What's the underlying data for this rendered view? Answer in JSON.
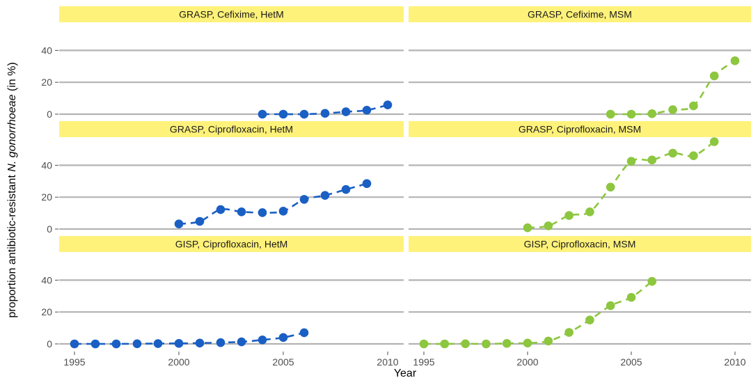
{
  "chart_data": {
    "type": "scatter",
    "ylabel_prefix": "proportion antibiotic-resistant ",
    "ylabel_italic": "N. gonorrhoeae",
    "ylabel_suffix": " (in %)",
    "xlabel": "Year",
    "xlim": [
      1995,
      2010
    ],
    "ylim": [
      0,
      45
    ],
    "x_ticks": [
      1995,
      2000,
      2005,
      2010
    ],
    "y_ticks": [
      0,
      20,
      40
    ],
    "grid": "horizontal",
    "colors": {
      "HetM": "#1a5fc4",
      "MSM": "#8dc63f",
      "strip_fill": "#fff27a",
      "grid": "#b3b3b3"
    },
    "panels": [
      {
        "title": "GRASP, Cefixime, HetM",
        "group": "HetM",
        "x": [
          2004,
          2005,
          2006,
          2007,
          2008,
          2009,
          2010
        ],
        "y": [
          0,
          0,
          0,
          0.5,
          1.5,
          2.5,
          5.8
        ]
      },
      {
        "title": "GRASP, Cefixime, MSM",
        "group": "MSM",
        "x": [
          2004,
          2005,
          2006,
          2007,
          2008,
          2009,
          2010
        ],
        "y": [
          0,
          0,
          0.3,
          2.8,
          5.2,
          24,
          33.5
        ]
      },
      {
        "title": "GRASP, Ciprofloxacin, HetM",
        "group": "HetM",
        "x": [
          2000,
          2001,
          2002,
          2003,
          2004,
          2005,
          2006,
          2007,
          2008,
          2009
        ],
        "y": [
          3.2,
          4.8,
          12.2,
          10.8,
          10.3,
          11.2,
          18.6,
          21.1,
          24.8,
          28.5
        ]
      },
      {
        "title": "GRASP, Ciprofloxacin, MSM",
        "group": "MSM",
        "x": [
          2000,
          2001,
          2002,
          2003,
          2004,
          2005,
          2006,
          2007,
          2008,
          2009
        ],
        "y": [
          0.8,
          2,
          8.5,
          10.8,
          26.3,
          42.5,
          43.3,
          47.6,
          46,
          54.8
        ]
      },
      {
        "title": "GISP, Ciprofloxacin, HetM",
        "group": "HetM",
        "x": [
          1995,
          1996,
          1997,
          1998,
          1999,
          2000,
          2001,
          2002,
          2003,
          2004,
          2005,
          2006
        ],
        "y": [
          0,
          0,
          0,
          0.1,
          0.2,
          0.3,
          0.5,
          0.8,
          1.3,
          2.5,
          4,
          7
        ]
      },
      {
        "title": "GISP, Ciprofloxacin, MSM",
        "group": "MSM",
        "x": [
          1995,
          1996,
          1997,
          1998,
          1999,
          2000,
          2001,
          2002,
          2003,
          2004,
          2005,
          2006
        ],
        "y": [
          0,
          0,
          0.1,
          0,
          0.3,
          0.5,
          1.8,
          7.2,
          15,
          24,
          29.2,
          39.2
        ]
      }
    ]
  }
}
